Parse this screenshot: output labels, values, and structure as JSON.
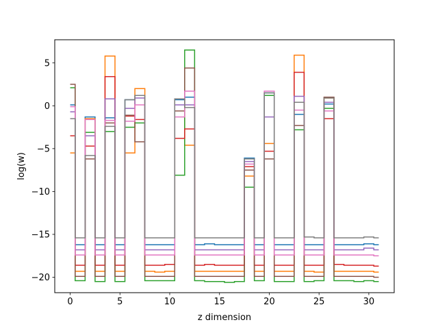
{
  "chart_data": {
    "type": "line",
    "xlabel": "z dimension",
    "ylabel": "log(w)",
    "xlim": [
      -1.55,
      32.55
    ],
    "ylim": [
      -21.8,
      7.7
    ],
    "x_ticks": [
      0,
      5,
      10,
      15,
      20,
      25,
      30
    ],
    "y_ticks": [
      5,
      0,
      -5,
      -10,
      -15,
      -20
    ],
    "x_tick_labels": [
      "0",
      "5",
      "10",
      "15",
      "20",
      "25",
      "30"
    ],
    "y_tick_labels": [
      "5",
      "0",
      "−5",
      "−10",
      "−15",
      "−20"
    ],
    "grid": false,
    "drawstyle": "steps-mid",
    "x": [
      0,
      1,
      2,
      3,
      4,
      5,
      6,
      7,
      8,
      9,
      10,
      11,
      12,
      13,
      14,
      15,
      16,
      17,
      18,
      19,
      20,
      21,
      22,
      23,
      24,
      25,
      26,
      27,
      28,
      29,
      30,
      31
    ],
    "series": [
      {
        "color": "#1f77b4",
        "values": [
          0.1,
          -16.2,
          -1.3,
          -16.2,
          -1.4,
          -16.2,
          0.7,
          1.2,
          -16.2,
          -16.2,
          -16.2,
          0.7,
          1.0,
          -16.2,
          -16.1,
          -16.2,
          -16.2,
          -16.2,
          -6.1,
          -16.2,
          1.5,
          -16.2,
          -16.2,
          -1.0,
          -16.2,
          -16.2,
          0.2,
          -16.2,
          -16.2,
          -16.2,
          -16.1,
          -16.2
        ]
      },
      {
        "color": "#ff7f0e",
        "values": [
          -5.5,
          -19.3,
          -1.5,
          -19.3,
          5.8,
          -19.3,
          -5.5,
          2.0,
          -19.3,
          -19.4,
          -19.3,
          0.8,
          -4.6,
          -19.3,
          -19.3,
          -19.3,
          -19.3,
          -19.3,
          -8.2,
          -19.3,
          -4.4,
          -19.3,
          -19.3,
          5.9,
          -19.3,
          -19.4,
          0.9,
          -19.3,
          -19.3,
          -19.3,
          -19.3,
          -19.4
        ]
      },
      {
        "color": "#2ca02c",
        "values": [
          2.1,
          -20.4,
          -3.1,
          -20.5,
          -3.0,
          -20.5,
          -2.5,
          -2.0,
          -20.4,
          -20.4,
          -20.4,
          -8.1,
          6.5,
          -20.4,
          -20.5,
          -20.5,
          -20.6,
          -20.5,
          -9.5,
          -20.4,
          1.2,
          -20.5,
          -20.5,
          -2.8,
          -20.5,
          -20.4,
          -0.3,
          -20.4,
          -20.4,
          -20.5,
          -20.4,
          -20.5
        ]
      },
      {
        "color": "#d62728",
        "values": [
          -3.5,
          -18.6,
          -4.7,
          -18.6,
          3.4,
          -18.6,
          -1.2,
          -1.6,
          -18.6,
          -18.6,
          -18.5,
          -3.8,
          -2.7,
          -18.6,
          -18.5,
          -18.6,
          -18.6,
          -18.6,
          -7.1,
          -18.6,
          -5.3,
          -18.6,
          -18.6,
          3.9,
          -18.6,
          -18.6,
          -1.5,
          -18.5,
          -18.6,
          -18.6,
          -18.6,
          -18.7
        ]
      },
      {
        "color": "#9467bd",
        "values": [
          -0.7,
          -16.8,
          -3.5,
          -16.8,
          0.8,
          -16.8,
          -0.3,
          0.9,
          -16.8,
          -16.8,
          -16.8,
          0.1,
          0.1,
          -16.8,
          -16.8,
          -16.8,
          -16.8,
          -16.8,
          -6.5,
          -16.8,
          -1.3,
          -16.8,
          -16.8,
          1.1,
          -16.8,
          -16.8,
          0.4,
          -16.8,
          -16.8,
          -16.8,
          -16.6,
          -16.8
        ]
      },
      {
        "color": "#8c564b",
        "values": [
          2.5,
          -19.9,
          -6.2,
          -19.9,
          -2.0,
          -19.9,
          -1.1,
          -4.2,
          -19.9,
          -19.9,
          -19.9,
          -0.6,
          4.4,
          -19.9,
          -19.9,
          -19.9,
          -19.9,
          -19.9,
          -7.5,
          -19.9,
          -6.2,
          -19.9,
          -19.9,
          -2.3,
          -19.9,
          -19.9,
          1.0,
          -19.9,
          -19.9,
          -19.9,
          -19.9,
          -20.0
        ]
      },
      {
        "color": "#e377c2",
        "values": [
          -0.1,
          -17.4,
          -1.6,
          -17.4,
          -1.7,
          -17.4,
          -1.8,
          0.1,
          -17.4,
          -17.4,
          -17.4,
          -1.3,
          1.7,
          -17.4,
          -17.4,
          -17.4,
          -17.4,
          -17.4,
          -6.8,
          -17.4,
          1.7,
          -17.4,
          -17.4,
          -0.5,
          -17.4,
          -17.4,
          -0.6,
          -17.4,
          -17.4,
          -17.4,
          -17.4,
          -17.5
        ]
      },
      {
        "color": "#7f7f7f",
        "values": [
          -1.5,
          -15.4,
          -5.8,
          -15.4,
          -2.4,
          -15.4,
          0.7,
          1.2,
          -15.4,
          -15.4,
          -15.4,
          0.8,
          -0.2,
          -15.4,
          -15.4,
          -15.4,
          -15.4,
          -15.4,
          -6.2,
          -15.4,
          1.5,
          -15.4,
          -15.4,
          0.4,
          -15.3,
          -15.4,
          0.9,
          -15.4,
          -15.4,
          -15.4,
          -15.3,
          -15.4
        ]
      }
    ]
  }
}
